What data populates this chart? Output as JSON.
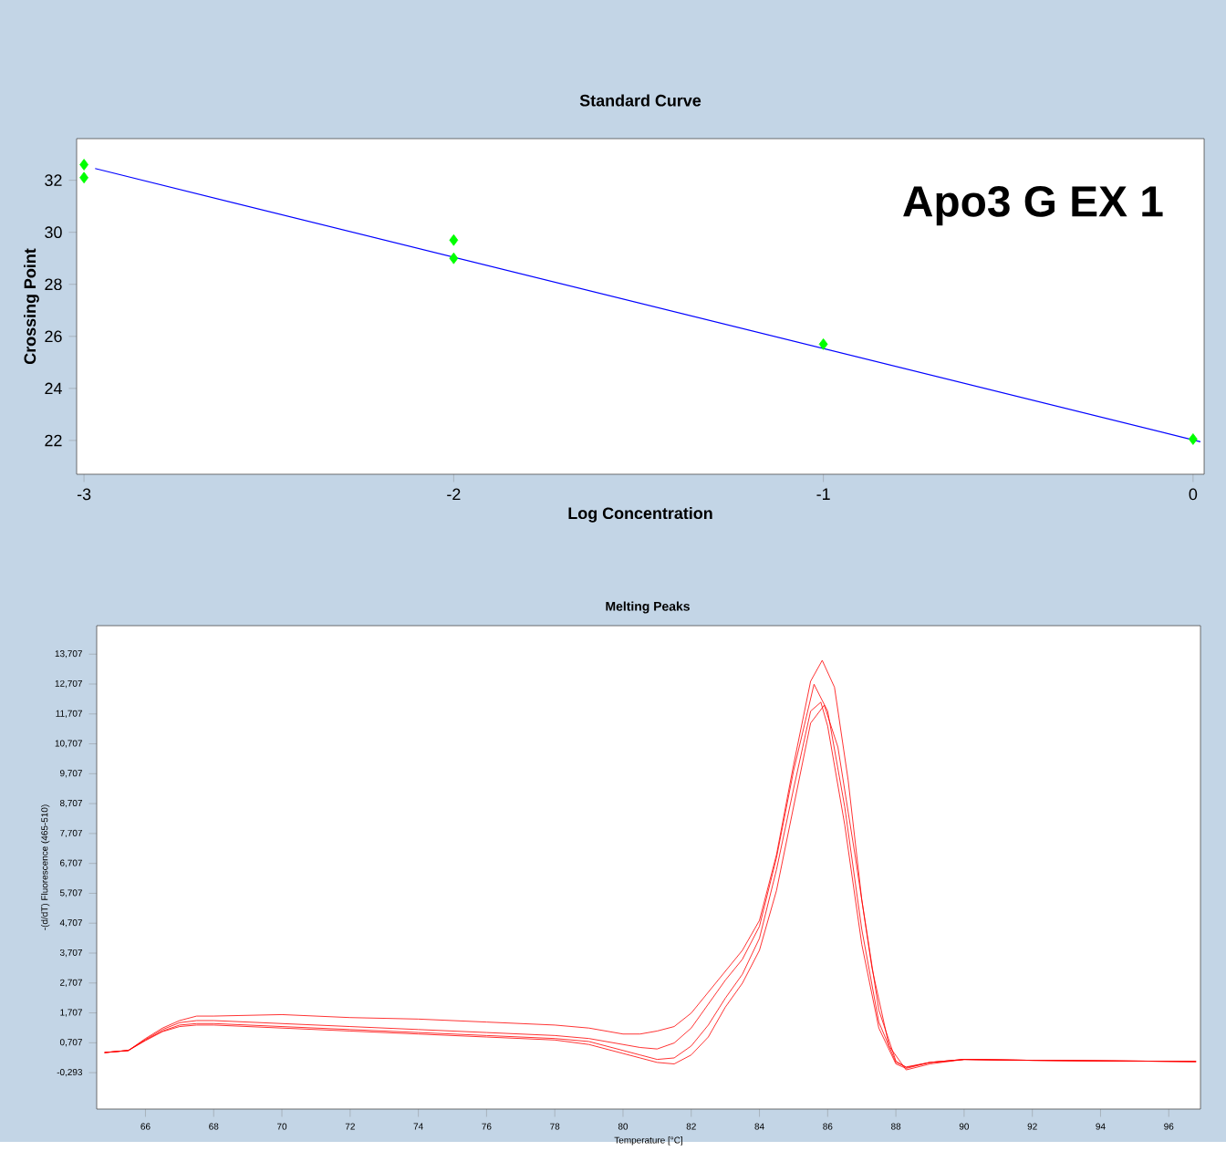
{
  "chart_data": [
    {
      "type": "scatter",
      "title": "Standard Curve",
      "xlabel": "Log Concentration",
      "ylabel": "Crossing Point",
      "xlim": [
        -3.02,
        0.03
      ],
      "ylim": [
        20.7,
        33.6
      ],
      "xticks": [
        -3,
        -2,
        -1,
        0
      ],
      "yticks": [
        22,
        24,
        26,
        28,
        30,
        32
      ],
      "annotations": [
        "Apo3 G EX 1"
      ],
      "series": [
        {
          "type": "scatter",
          "color": "#00ff00",
          "marker": "diamond",
          "x": [
            -3,
            -3,
            -2,
            -2,
            -1,
            0
          ],
          "values": [
            32.6,
            32.1,
            29.7,
            29.0,
            25.7,
            22.05
          ]
        },
        {
          "type": "line",
          "color": "#0000ff",
          "marker": "none",
          "x": [
            -2.97,
            0.02
          ],
          "values": [
            32.45,
            21.95
          ]
        }
      ]
    },
    {
      "type": "line",
      "title": "Melting Peaks",
      "xlabel": "Temperature [°C]",
      "ylabel": "-(d/dT) Fluorescence (465-510)",
      "xlim": [
        64.57,
        96.93
      ],
      "ylim": [
        -1.51,
        14.66
      ],
      "xticks": [
        66,
        68,
        70,
        72,
        74,
        76,
        78,
        80,
        82,
        84,
        86,
        88,
        90,
        92,
        94,
        96
      ],
      "yticks": [
        {
          "value": -0.293,
          "label": "-0,293"
        },
        {
          "value": 0.707,
          "label": "0,707"
        },
        {
          "value": 1.707,
          "label": "1,707"
        },
        {
          "value": 2.707,
          "label": "2,707"
        },
        {
          "value": 3.707,
          "label": "3,707"
        },
        {
          "value": 4.707,
          "label": "4,707"
        },
        {
          "value": 5.707,
          "label": "5,707"
        },
        {
          "value": 6.707,
          "label": "6,707"
        },
        {
          "value": 7.707,
          "label": "7,707"
        },
        {
          "value": 8.707,
          "label": "8,707"
        },
        {
          "value": 9.707,
          "label": "9,707"
        },
        {
          "value": 10.707,
          "label": "10,707"
        },
        {
          "value": 11.707,
          "label": "11,707"
        },
        {
          "value": 12.707,
          "label": "12,707"
        },
        {
          "value": 13.707,
          "label": "13,707"
        }
      ],
      "marker": "none",
      "series": [
        {
          "color": "#ff0000",
          "x": [
            64.8,
            65.5,
            66,
            66.5,
            67,
            67.5,
            68,
            70,
            72,
            74,
            76,
            78,
            79,
            80,
            80.5,
            81,
            81.5,
            82,
            82.5,
            83,
            83.5,
            84,
            84.5,
            85,
            85.5,
            85.8,
            86,
            86.5,
            87,
            87.5,
            88,
            88.3,
            89,
            90,
            92,
            96.8
          ],
          "values": [
            0.38,
            0.45,
            0.8,
            1.1,
            1.3,
            1.35,
            1.35,
            1.25,
            1.15,
            1.05,
            0.95,
            0.85,
            0.75,
            0.45,
            0.3,
            0.15,
            0.2,
            0.6,
            1.3,
            2.2,
            3.0,
            4.2,
            6.5,
            9.2,
            11.8,
            12.1,
            11.3,
            8.0,
            4.0,
            1.2,
            0.0,
            -0.15,
            0.05,
            0.15,
            0.12,
            0.08
          ]
        },
        {
          "color": "#ff0000",
          "x": [
            64.8,
            65.5,
            66,
            66.5,
            67,
            67.5,
            68,
            70,
            72,
            74,
            76,
            78,
            79,
            80,
            80.5,
            81,
            81.5,
            82,
            82.5,
            83,
            83.5,
            84,
            84.5,
            85,
            85.5,
            85.84,
            86.2,
            86.6,
            87,
            87.5,
            88,
            88.3,
            89,
            90,
            92,
            96.8
          ],
          "values": [
            0.38,
            0.45,
            0.85,
            1.2,
            1.45,
            1.6,
            1.6,
            1.65,
            1.55,
            1.5,
            1.4,
            1.3,
            1.2,
            1.0,
            1.0,
            1.1,
            1.25,
            1.7,
            2.4,
            3.1,
            3.8,
            4.8,
            7.0,
            10.0,
            12.8,
            13.5,
            12.6,
            9.5,
            5.5,
            1.8,
            0.1,
            -0.12,
            0.05,
            0.15,
            0.12,
            0.08
          ]
        },
        {
          "color": "#ff0000",
          "x": [
            64.8,
            65.5,
            66,
            66.5,
            67,
            67.5,
            68,
            70,
            72,
            74,
            76,
            78,
            79,
            80,
            80.5,
            81,
            81.5,
            82,
            82.5,
            83,
            83.5,
            84,
            84.5,
            85,
            85.6,
            86,
            86.5,
            87,
            87.5,
            88,
            88.3,
            89,
            90,
            92,
            96.8
          ],
          "values": [
            0.38,
            0.45,
            0.82,
            1.15,
            1.38,
            1.45,
            1.45,
            1.35,
            1.25,
            1.15,
            1.05,
            0.95,
            0.85,
            0.65,
            0.55,
            0.5,
            0.7,
            1.2,
            2.0,
            2.8,
            3.5,
            4.6,
            6.9,
            9.8,
            12.7,
            11.8,
            8.6,
            4.5,
            1.4,
            0.05,
            -0.1,
            0.05,
            0.15,
            0.12,
            0.08
          ]
        },
        {
          "color": "#ff0000",
          "x": [
            64.8,
            65.5,
            66,
            66.5,
            67,
            67.5,
            68,
            70,
            72,
            74,
            76,
            78,
            79,
            80,
            80.5,
            81,
            81.5,
            82,
            82.5,
            83,
            83.5,
            84,
            84.5,
            85,
            85.5,
            85.9,
            86.3,
            86.8,
            87.3,
            87.8,
            88.3,
            89,
            90,
            92,
            96.8
          ],
          "values": [
            0.38,
            0.45,
            0.78,
            1.08,
            1.25,
            1.3,
            1.3,
            1.2,
            1.1,
            1.0,
            0.9,
            0.8,
            0.65,
            0.35,
            0.2,
            0.05,
            0.0,
            0.3,
            0.9,
            1.9,
            2.7,
            3.8,
            5.8,
            8.6,
            11.4,
            12.0,
            10.6,
            7.0,
            3.2,
            0.6,
            -0.2,
            0.0,
            0.15,
            0.12,
            0.08
          ]
        }
      ]
    }
  ]
}
